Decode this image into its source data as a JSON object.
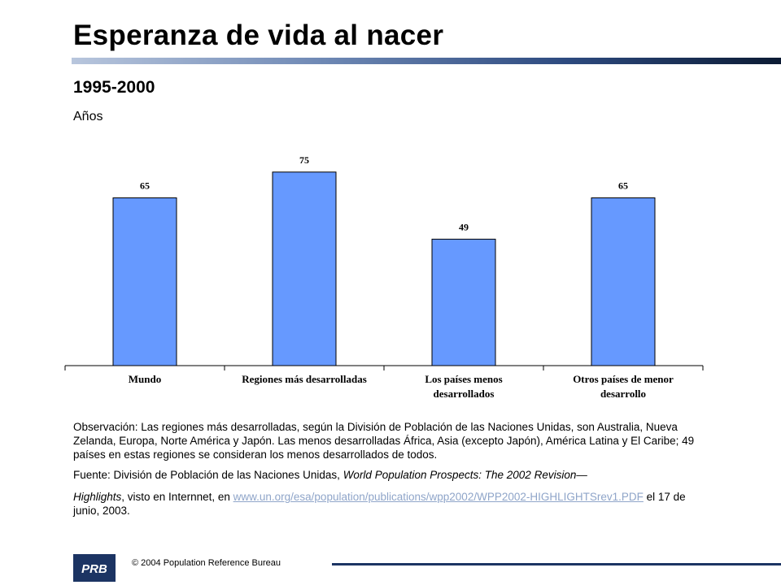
{
  "header": {
    "title": "Esperanza de vida al nacer",
    "accent_color": "#1c3463"
  },
  "chart_data": {
    "type": "bar",
    "title": "1995-2000",
    "subtitle": "Años",
    "categories": [
      "Mundo",
      "Regiones más desarrolladas",
      "Los países menos desarrollados",
      "Otros países de menor desarrollo"
    ],
    "category_lines": [
      [
        "Mundo"
      ],
      [
        "Regiones más desarrolladas"
      ],
      [
        "Los países menos",
        "desarrollados"
      ],
      [
        "Otros países de menor",
        "desarrollo"
      ]
    ],
    "values": [
      65,
      75,
      49,
      65
    ],
    "value_labels": [
      "65",
      "75",
      "49",
      "65"
    ],
    "bar_color": "#6699ff",
    "ylim": [
      0,
      85
    ],
    "grid": false,
    "legend": "none"
  },
  "notes": {
    "observation": "Observación: Las regiones más desarrolladas, según la División de Población de las Naciones Unidas, son Australia, Nueva Zelanda, Europa, Norte América y Japón. Las menos desarrolladas África, Asia (excepto Japón), América Latina y El Caribe; 49 países en estas regiones se consideran los menos desarrollados de todos.",
    "source_prefix": "Fuente: División de Población de las Naciones Unidas, ",
    "source_italic": "World Population Prospects: The 2002 Revision—",
    "highlights_italic": "Highlights",
    "highlights_text": ", visto en Internnet, en ",
    "link": "www.un.org/esa/population/publications/wpp2002/WPP2002-HIGHLIGHTSrev1.PDF",
    "date_text": " el 17 de junio, 2003.",
    "link_color": "#8fa5c9"
  },
  "footer": {
    "logo_text": "PRB",
    "copyright": "© 2004  Population Reference Bureau"
  }
}
